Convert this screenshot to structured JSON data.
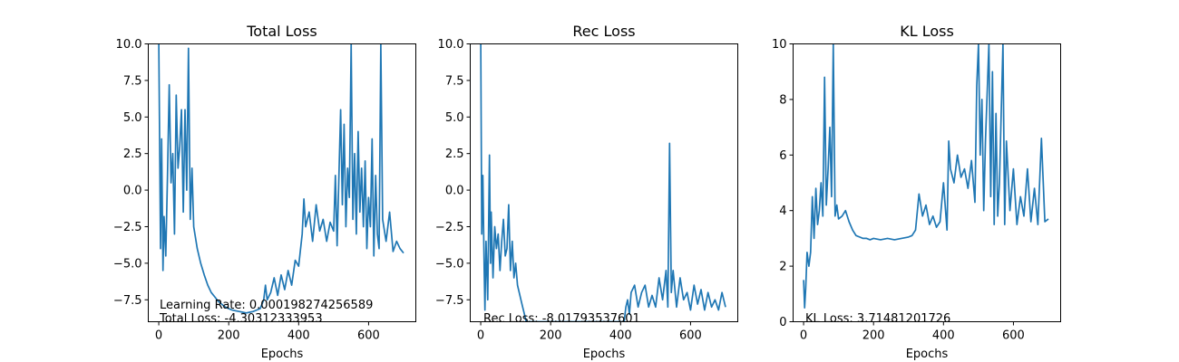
{
  "figure": {
    "background": "#ffffff",
    "line_color": "#1f77b4"
  },
  "chart_data": [
    {
      "type": "line",
      "title": "Total Loss",
      "xlabel": "Epochs",
      "ylabel": "",
      "xlim": [
        -30,
        735
      ],
      "ylim": [
        -9.0,
        10.0
      ],
      "xticks": [
        0,
        200,
        400,
        600
      ],
      "yticks": [
        -7.5,
        -5.0,
        -2.5,
        0.0,
        2.5,
        5.0,
        7.5,
        10.0
      ],
      "ytick_labels": [
        "−7.5",
        "−5.0",
        "−2.5",
        "0.0",
        "2.5",
        "5.0",
        "7.5",
        "10.0"
      ],
      "annotations": [
        "Learning Rate: 0.000198274256589",
        "Total Loss: -4.30312333953"
      ],
      "series": [
        {
          "x": [
            0,
            5,
            8,
            12,
            15,
            20,
            25,
            30,
            35,
            40,
            45,
            50,
            55,
            60,
            65,
            70,
            75,
            80,
            85,
            90,
            95,
            100,
            110,
            120,
            130,
            140,
            150,
            160,
            170,
            180,
            190,
            200,
            210,
            220,
            230,
            240,
            250,
            260,
            270,
            280,
            290,
            300,
            305,
            310,
            320,
            330,
            340,
            350,
            360,
            370,
            380,
            390,
            400,
            410,
            415,
            420,
            430,
            440,
            450,
            460,
            470,
            480,
            490,
            500,
            505,
            510,
            520,
            525,
            530,
            535,
            540,
            545,
            550,
            555,
            560,
            565,
            570,
            575,
            580,
            585,
            590,
            595,
            600,
            605,
            610,
            615,
            620,
            625,
            630,
            635,
            640,
            650,
            660,
            670,
            680,
            690,
            700
          ],
          "y": [
            10.0,
            -4.0,
            3.5,
            -5.5,
            -1.8,
            -4.5,
            1.0,
            7.2,
            0.5,
            2.5,
            -3.0,
            6.5,
            1.5,
            3.0,
            5.5,
            -1.5,
            5.5,
            0.0,
            9.7,
            -2.0,
            1.5,
            -2.5,
            -4.0,
            -5.0,
            -5.8,
            -6.5,
            -7.0,
            -7.3,
            -7.6,
            -7.8,
            -8.0,
            -8.1,
            -8.2,
            -8.25,
            -8.3,
            -8.35,
            -8.4,
            -8.35,
            -8.3,
            -8.2,
            -8.1,
            -7.5,
            -6.5,
            -7.5,
            -7.0,
            -6.0,
            -7.2,
            -5.8,
            -6.8,
            -5.5,
            -6.5,
            -4.8,
            -5.2,
            -3.0,
            -0.6,
            -2.5,
            -1.5,
            -3.5,
            -1.0,
            -2.8,
            -2.0,
            -3.5,
            -2.2,
            -2.8,
            1.0,
            -3.8,
            5.5,
            -1.0,
            4.5,
            -2.5,
            1.5,
            -0.5,
            10.0,
            -2.0,
            2.5,
            -3.0,
            4.0,
            -1.5,
            1.5,
            -2.5,
            2.0,
            -4.0,
            -0.5,
            -2.5,
            3.5,
            -4.5,
            1.0,
            -3.0,
            -4.0,
            10.0,
            -2.0,
            -3.5,
            -1.5,
            -4.2,
            -3.5,
            -4.0,
            -4.3
          ]
        }
      ]
    },
    {
      "type": "line",
      "title": "Rec Loss",
      "xlabel": "Epochs",
      "ylabel": "",
      "xlim": [
        -30,
        735
      ],
      "ylim": [
        -9.0,
        10.0
      ],
      "xticks": [
        0,
        200,
        400,
        600
      ],
      "yticks": [
        -7.5,
        -5.0,
        -2.5,
        0.0,
        2.5,
        5.0,
        7.5,
        10.0
      ],
      "ytick_labels": [
        "−7.5",
        "−5.0",
        "−2.5",
        "0.0",
        "2.5",
        "5.0",
        "7.5",
        "10.0"
      ],
      "annotations": [
        "Rec Loss: -8.01793537601"
      ],
      "series": [
        {
          "x": [
            0,
            3,
            6,
            10,
            12,
            15,
            20,
            25,
            28,
            30,
            35,
            40,
            45,
            50,
            55,
            60,
            65,
            70,
            75,
            80,
            85,
            90,
            95,
            100,
            105,
            110,
            115,
            120,
            125,
            130,
            410,
            415,
            420,
            425,
            430,
            440,
            450,
            460,
            470,
            480,
            490,
            500,
            510,
            520,
            530,
            535,
            540,
            545,
            550,
            560,
            570,
            580,
            590,
            600,
            610,
            620,
            630,
            640,
            650,
            660,
            670,
            680,
            690,
            700
          ],
          "y": [
            10.0,
            -3.0,
            1.0,
            -5.5,
            -8.2,
            -3.5,
            -7.5,
            2.4,
            -5.0,
            -1.5,
            -6.0,
            -2.5,
            -4.0,
            -3.0,
            -5.5,
            -3.5,
            -2.0,
            -4.5,
            -4.0,
            -1.0,
            -5.5,
            -3.5,
            -6.0,
            -5.0,
            -6.5,
            -7.0,
            -7.5,
            -8.0,
            -8.5,
            -9.0,
            -9.0,
            -8.0,
            -7.5,
            -8.5,
            -7.0,
            -6.5,
            -8.0,
            -7.0,
            -6.5,
            -8.0,
            -7.2,
            -8.0,
            -6.0,
            -7.5,
            -5.5,
            -8.0,
            3.2,
            -7.0,
            -5.5,
            -8.0,
            -6.0,
            -7.5,
            -7.0,
            -8.2,
            -6.5,
            -7.8,
            -6.8,
            -8.2,
            -7.0,
            -8.0,
            -7.5,
            -8.2,
            -7.0,
            -8.0
          ]
        }
      ]
    },
    {
      "type": "line",
      "title": "KL Loss",
      "xlabel": "Epochs",
      "ylabel": "",
      "xlim": [
        -30,
        735
      ],
      "ylim": [
        0,
        10
      ],
      "xticks": [
        0,
        200,
        400,
        600
      ],
      "yticks": [
        0,
        2,
        4,
        6,
        8,
        10
      ],
      "ytick_labels": [
        "0",
        "2",
        "4",
        "6",
        "8",
        "10"
      ],
      "annotations": [
        "KL Loss: 3.71481201726"
      ],
      "series": [
        {
          "x": [
            0,
            3,
            6,
            10,
            15,
            20,
            25,
            30,
            35,
            40,
            45,
            50,
            55,
            60,
            65,
            70,
            75,
            80,
            85,
            90,
            95,
            100,
            110,
            120,
            130,
            140,
            150,
            160,
            170,
            180,
            190,
            200,
            220,
            240,
            260,
            280,
            300,
            310,
            320,
            330,
            340,
            350,
            360,
            370,
            380,
            390,
            400,
            410,
            415,
            420,
            430,
            440,
            450,
            460,
            470,
            480,
            490,
            495,
            500,
            505,
            510,
            515,
            520,
            530,
            535,
            540,
            545,
            550,
            555,
            560,
            570,
            575,
            580,
            590,
            600,
            610,
            620,
            630,
            640,
            650,
            660,
            670,
            680,
            690,
            700
          ],
          "y": [
            1.5,
            0.5,
            1.2,
            2.5,
            2.0,
            2.5,
            4.5,
            3.0,
            4.8,
            3.5,
            4.0,
            5.0,
            3.8,
            8.8,
            4.2,
            5.5,
            7.0,
            4.5,
            10.0,
            3.8,
            4.2,
            3.7,
            3.8,
            4.0,
            3.6,
            3.3,
            3.1,
            3.05,
            3.0,
            3.0,
            2.95,
            3.0,
            2.95,
            3.0,
            2.95,
            3.0,
            3.05,
            3.1,
            3.3,
            4.6,
            3.8,
            4.2,
            3.5,
            3.8,
            3.4,
            3.6,
            5.0,
            3.3,
            6.5,
            5.5,
            5.0,
            6.0,
            5.2,
            5.5,
            4.8,
            5.8,
            4.3,
            8.5,
            10.0,
            6.0,
            8.0,
            4.0,
            6.5,
            10.0,
            4.5,
            9.0,
            3.5,
            7.5,
            3.8,
            5.0,
            10.0,
            3.5,
            6.5,
            4.0,
            5.5,
            3.5,
            4.5,
            3.8,
            5.5,
            3.6,
            4.8,
            3.5,
            6.6,
            3.6,
            3.7
          ]
        }
      ]
    }
  ]
}
